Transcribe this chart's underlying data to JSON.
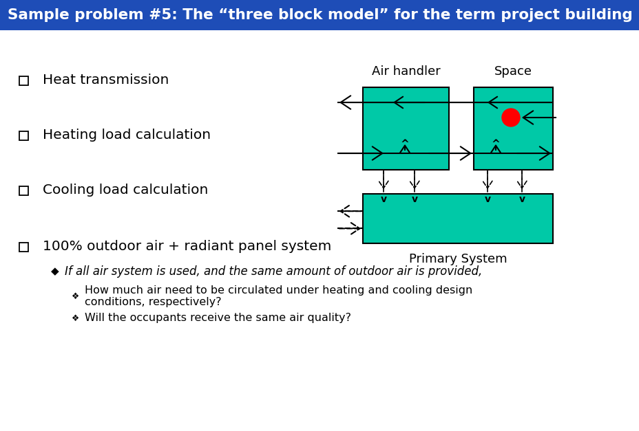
{
  "title": "Sample problem #5: The “three block model” for the term project building",
  "title_bg_color": "#1e4db7",
  "title_text_color": "#ffffff",
  "bg_color": "#ffffff",
  "teal_color": "#00c9a7",
  "bullet_items": [
    "Heat transmission",
    "Heating load calculation",
    "Cooling load calculation",
    "100% outdoor air + radiant panel system"
  ],
  "sub_bullet_italic": "If all air system is used, and the same amount of outdoor air is provided,",
  "sub_sub_bullets": [
    "How much air need to be circulated under heating and cooling design\nconditions, respectively?",
    "Will the occupants receive the same air quality?"
  ],
  "label_air_handler": "Air handler",
  "label_space": "Space",
  "label_primary": "Primary System",
  "text_color": "#000000",
  "fig_width": 9.29,
  "fig_height": 6.27,
  "dpi": 100
}
